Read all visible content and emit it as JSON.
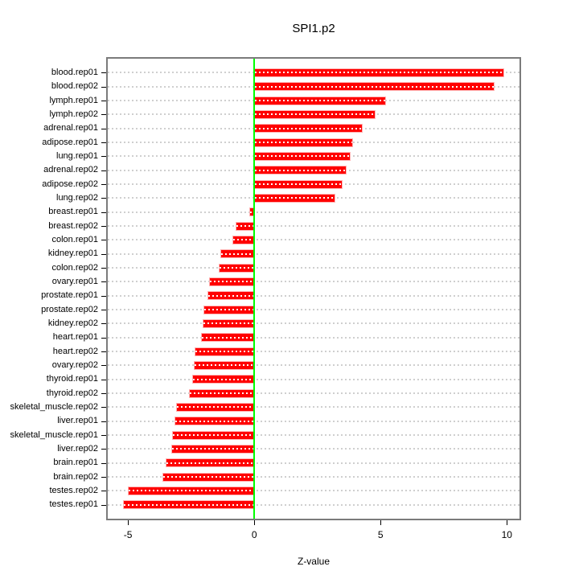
{
  "chart_data": {
    "type": "bar",
    "orientation": "horizontal",
    "title": "SPI1.p2",
    "xlabel": "Z-value",
    "ylabel": "",
    "legend": "none",
    "grid": "dotted-horizontal-per-category",
    "xticks": [
      -5,
      0,
      5,
      10
    ],
    "xlim": [
      -5.8,
      10.5
    ],
    "categories": [
      "blood.rep01",
      "blood.rep02",
      "lymph.rep01",
      "lymph.rep02",
      "adrenal.rep01",
      "adipose.rep01",
      "lung.rep01",
      "adrenal.rep02",
      "adipose.rep02",
      "lung.rep02",
      "breast.rep01",
      "breast.rep02",
      "colon.rep01",
      "kidney.rep01",
      "colon.rep02",
      "ovary.rep01",
      "prostate.rep01",
      "prostate.rep02",
      "kidney.rep02",
      "heart.rep01",
      "heart.rep02",
      "ovary.rep02",
      "thyroid.rep01",
      "thyroid.rep02",
      "skeletal_muscle.rep02",
      "liver.rep01",
      "skeletal_muscle.rep01",
      "liver.rep02",
      "brain.rep01",
      "brain.rep02",
      "testes.rep02",
      "testes.rep01"
    ],
    "values": [
      9.9,
      9.5,
      5.2,
      4.8,
      4.3,
      3.9,
      3.8,
      3.65,
      3.5,
      3.2,
      -0.2,
      -0.75,
      -0.85,
      -1.35,
      -1.4,
      -1.8,
      -1.85,
      -2.0,
      -2.05,
      -2.1,
      -2.35,
      -2.4,
      -2.45,
      -2.6,
      -3.1,
      -3.15,
      -3.25,
      -3.3,
      -3.5,
      -3.65,
      -5.0,
      -5.2
    ],
    "colors": {
      "bar": "#ff0000",
      "bar_border": "#ffb3b3",
      "bar_center_dash": "#ffffff",
      "zero_line": "#00ff00",
      "gridline": "#cfcfcf",
      "panel_border": "#7b7b7b",
      "axis_text": "#000000",
      "background": "#ffffff"
    }
  }
}
